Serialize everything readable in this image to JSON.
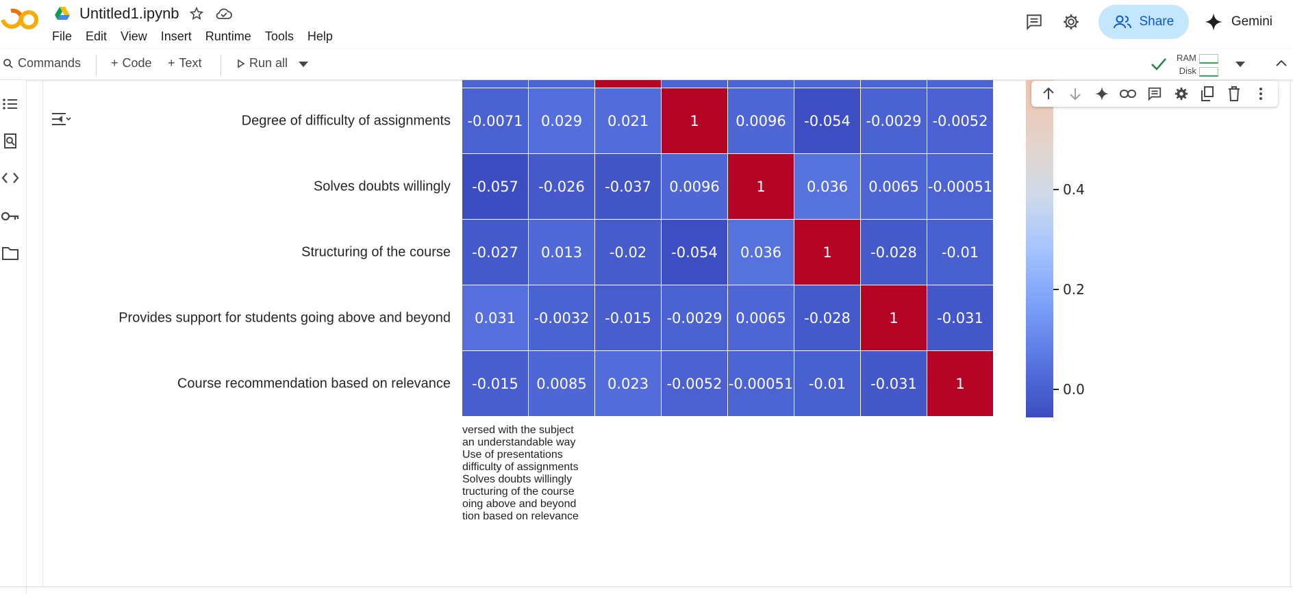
{
  "app": {
    "filename": "Untitled1.ipynb",
    "menu": [
      "File",
      "Edit",
      "View",
      "Insert",
      "Runtime",
      "Tools",
      "Help"
    ],
    "share_label": "Share",
    "gemini_label": "Gemini"
  },
  "toolbar": {
    "commands_label": "Commands",
    "code_label": "Code",
    "text_label": "Text",
    "run_all_label": "Run all",
    "ram_label": "RAM",
    "disk_label": "Disk"
  },
  "colors": {
    "accent": "#0b57d0",
    "share_bg": "#c2e7ff",
    "status_green": "#188038",
    "heat_low": "#3b4cc0",
    "heat_high": "#b40426"
  },
  "icons": {
    "left_rail": [
      "table-of-contents-icon",
      "find-replace-icon",
      "code-snippets-icon",
      "secrets-key-icon",
      "files-folder-icon"
    ],
    "cell_toolbar": [
      "move-up-icon",
      "move-down-icon",
      "gemini-sparkle-icon",
      "link-icon",
      "comment-icon",
      "settings-gear-icon",
      "mirror-cell-icon",
      "delete-icon",
      "more-vert-icon"
    ]
  },
  "chart_data": {
    "type": "heatmap",
    "title": "",
    "row_labels": [
      "Degree of difficulty of assignments",
      "Solves doubts willingly",
      "Structuring of the course",
      "Provides support for students going above and beyond",
      "Course recommendation based on relevance"
    ],
    "column_labels": [
      "versed with the subject",
      "an understandable way",
      "Use of presentations",
      "difficulty of assignments",
      "Solves doubts willingly",
      "tructuring of the course",
      "oing above and beyond",
      "tion based on relevance"
    ],
    "values": [
      [
        -0.0071,
        0.029,
        0.021,
        1,
        0.0096,
        -0.054,
        -0.0029,
        -0.0052
      ],
      [
        -0.057,
        -0.026,
        -0.037,
        0.0096,
        1,
        0.036,
        0.0065,
        -0.00051
      ],
      [
        -0.027,
        0.013,
        -0.02,
        -0.054,
        0.036,
        1,
        -0.028,
        -0.01
      ],
      [
        0.031,
        -0.0032,
        -0.015,
        -0.0029,
        0.0065,
        -0.028,
        1,
        -0.031
      ],
      [
        -0.015,
        0.0085,
        0.023,
        -0.0052,
        -0.00051,
        -0.01,
        -0.031,
        1
      ]
    ],
    "value_labels": [
      [
        "-0.0071",
        "0.029",
        "0.021",
        "1",
        "0.0096",
        "-0.054",
        "-0.0029",
        "-0.0052"
      ],
      [
        "-0.057",
        "-0.026",
        "-0.037",
        "0.0096",
        "1",
        "0.036",
        "0.0065",
        "-0.00051"
      ],
      [
        "-0.027",
        "0.013",
        "-0.02",
        "-0.054",
        "0.036",
        "1",
        "-0.028",
        "-0.01"
      ],
      [
        "0.031",
        "-0.0032",
        "-0.015",
        "-0.0029",
        "0.0065",
        "-0.028",
        "1",
        "-0.031"
      ],
      [
        "-0.015",
        "0.0085",
        "0.023",
        "-0.0052",
        "-0.00051",
        "-0.01",
        "-0.031",
        "1"
      ]
    ],
    "colorbar_ticks": [
      "0.4",
      "0.2",
      "0.0"
    ],
    "colorbar_tick_values": [
      0.4,
      0.2,
      0.0
    ],
    "colormap": "coolwarm"
  }
}
